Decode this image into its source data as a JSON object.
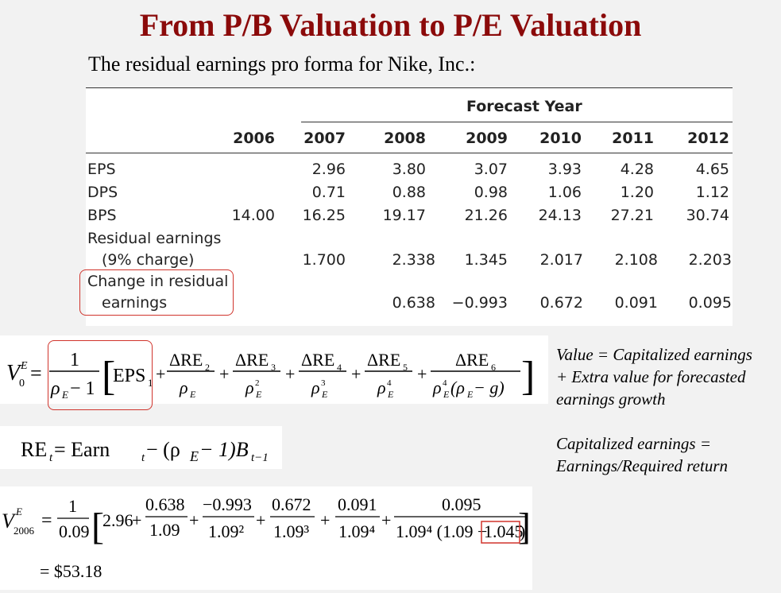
{
  "title": "From P/B Valuation to P/E Valuation",
  "subtitle": "The residual earnings pro forma for Nike, Inc.:",
  "table": {
    "group_header": "Forecast Year",
    "years": [
      "2006",
      "2007",
      "2008",
      "2009",
      "2010",
      "2011",
      "2012"
    ],
    "rows": [
      {
        "label": "EPS",
        "values": [
          "",
          "2.96",
          "3.80",
          "3.07",
          "3.93",
          "4.28",
          "4.65"
        ]
      },
      {
        "label": "DPS",
        "values": [
          "",
          "0.71",
          "0.88",
          "0.98",
          "1.06",
          "1.20",
          "1.12"
        ]
      },
      {
        "label": "BPS",
        "values": [
          "14.00",
          "16.25",
          "19.17",
          "21.26",
          "24.13",
          "27.21",
          "30.74"
        ]
      },
      {
        "label": "Residual earnings",
        "label2": "(9% charge)",
        "values": [
          "",
          "1.700",
          "2.338",
          "1.345",
          "2.017",
          "2.108",
          "2.203"
        ]
      },
      {
        "label": "Change in residual",
        "label2": "earnings",
        "values": [
          "",
          "",
          "0.638",
          "−0.993",
          "0.672",
          "0.091",
          "0.095"
        ]
      }
    ]
  },
  "formula1": {
    "lhs_symbol": "V",
    "lhs_sup": "E",
    "lhs_sub": "0",
    "one": "1",
    "rho": "ρ",
    "rho_sub": "E",
    "minus_one": "− 1",
    "eps_label": "EPS",
    "eps_sub": "1",
    "delta_re": "ΔRE",
    "terms": [
      {
        "sub": "2",
        "den_exp": ""
      },
      {
        "sub": "3",
        "den_exp": "2"
      },
      {
        "sub": "4",
        "den_exp": "3"
      },
      {
        "sub": "5",
        "den_exp": "4"
      },
      {
        "sub": "6",
        "den_exp": "4"
      }
    ],
    "last_den_suffix": "(ρ",
    "last_den_tail": " − g)"
  },
  "formula2": {
    "text": "RE",
    "t": "t",
    "eq": " = Earn",
    "mid": " − (ρ",
    "E": "E",
    "tail": " − 1)B",
    "tminus1": "t−1"
  },
  "formula3": {
    "lhs": "V",
    "lhs_sup": "E",
    "lhs_sub": "2006",
    "one": "1",
    "rate": "0.09",
    "eps": "2.96",
    "nums": [
      "0.638",
      "−0.993",
      "0.672",
      "0.091",
      "0.095"
    ],
    "dens": [
      "1.09",
      "1.09²",
      "1.09³",
      "1.09⁴"
    ],
    "last_den_a": "1.09⁴ (1.09 − ",
    "last_den_b": "1.045",
    "last_den_c": ")",
    "result": "= $53.18"
  },
  "notes": {
    "line1": "Value = Capitalized earnings",
    "line2": "+ Extra value for forecasted",
    "line3": "earnings growth",
    "line4": "Capitalized earnings =",
    "line5": "Earnings/Required return"
  },
  "colors": {
    "title": "#8b0a0a",
    "highlight": "#d0342c"
  }
}
